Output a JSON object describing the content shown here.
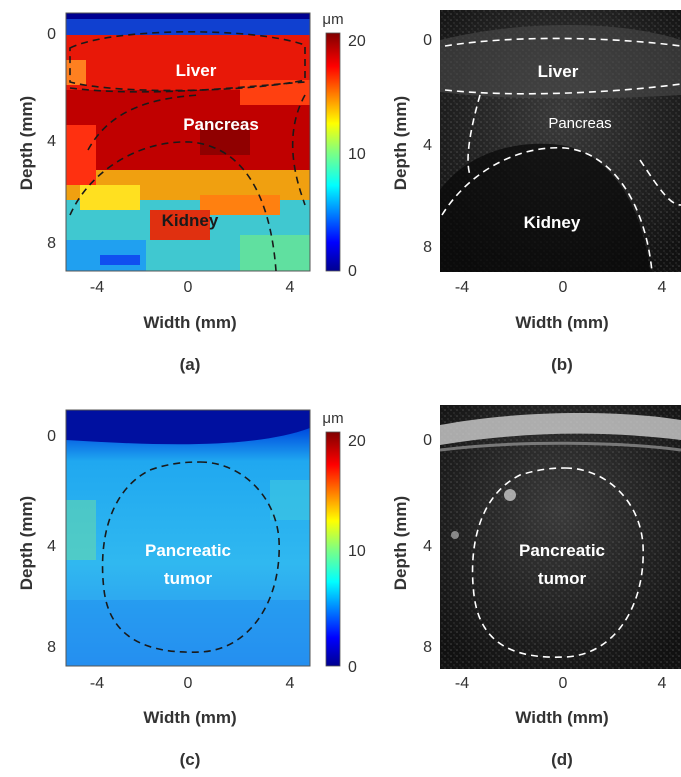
{
  "figures": {
    "a": {
      "panel_label": "(a)",
      "xlabel": "Width (mm)",
      "ylabel": "Depth (mm)",
      "xticks": [
        "-4",
        "0",
        "4"
      ],
      "yticks": [
        "0",
        "4",
        "8"
      ],
      "regions": [
        "Liver",
        "Pancreas",
        "Kidney"
      ],
      "colorbar": {
        "unit": "μm",
        "ticks": [
          "20",
          "10",
          "0"
        ],
        "range": [
          0,
          20
        ]
      }
    },
    "b": {
      "panel_label": "(b)",
      "xlabel": "Width (mm)",
      "ylabel": "Depth (mm)",
      "xticks": [
        "-4",
        "0",
        "4"
      ],
      "yticks": [
        "0",
        "4",
        "8"
      ],
      "regions": [
        "Liver",
        "Pancreas",
        "Kidney"
      ]
    },
    "c": {
      "panel_label": "(c)",
      "xlabel": "Width (mm)",
      "ylabel": "Depth (mm)",
      "xticks": [
        "-4",
        "0",
        "4"
      ],
      "yticks": [
        "0",
        "4",
        "8"
      ],
      "regions_line1": "Pancreatic",
      "regions_line2": "tumor",
      "colorbar": {
        "unit": "μm",
        "ticks": [
          "20",
          "10",
          "0"
        ],
        "range": [
          0,
          20
        ]
      }
    },
    "d": {
      "panel_label": "(d)",
      "xlabel": "Width (mm)",
      "ylabel": "Depth (mm)",
      "xticks": [
        "-4",
        "0",
        "4"
      ],
      "yticks": [
        "0",
        "4",
        "8"
      ],
      "regions_line1": "Pancreatic",
      "regions_line2": "tumor"
    }
  },
  "colors": {
    "jet": [
      "#00008f",
      "#0000ff",
      "#0080ff",
      "#00ffff",
      "#80ff80",
      "#ffff00",
      "#ff8000",
      "#ff0000",
      "#800000"
    ],
    "dashed_dark": "#1a1a1a",
    "dashed_light": "#ffffff"
  }
}
